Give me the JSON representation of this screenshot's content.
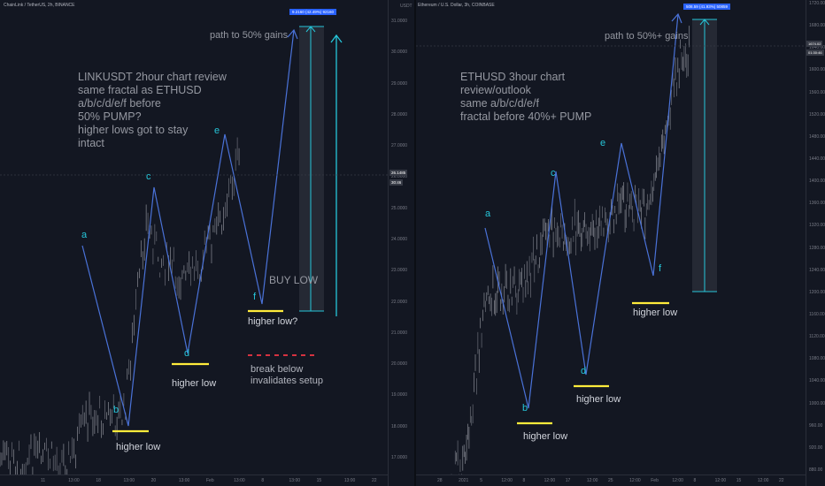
{
  "left_chart": {
    "ticker": "ChainLink / TetherUS, 2h, BINANCE",
    "title_note": "LINKUSDT 2hour chart review\nsame fractal as ETHUSD\na/b/c/d/e/f before\n50% PUMP?\nhigher lows got to stay\nintact",
    "path_note": "path to 50% gains",
    "buy_low": "BUY LOW",
    "break_note": "break below\ninvalidates setup",
    "price_box": "9.2160 (42.49%) 92160",
    "price_tag_top": "26.1485",
    "price_tag_bottom": "30:46",
    "waves": [
      "a",
      "b",
      "c",
      "d",
      "e",
      "f"
    ],
    "higher_low_labels": [
      "higher low",
      "higher low",
      "higher low?"
    ],
    "y_ticks": [
      "31.0000",
      "30.0000",
      "29.0000",
      "28.0000",
      "27.0000",
      "26.0000",
      "25.0000",
      "24.0000",
      "23.0000",
      "22.0000",
      "21.0000",
      "20.0000",
      "19.0000",
      "18.0000",
      "17.0000"
    ],
    "x_ticks": [
      "11",
      "13:00",
      "18",
      "13:00",
      "20",
      "13:00",
      "Feb",
      "13:00",
      "8",
      "13:00",
      "15",
      "13:00",
      "22"
    ],
    "colors": {
      "wave_line": "#4a72d8",
      "accent": "#26c6da",
      "highlight": "#ffeb3b",
      "danger": "#f23645"
    }
  },
  "right_chart": {
    "ticker": "Ethereum / U.S. Dollar, 3h, COINBASE",
    "currency": "USDT",
    "title_note": "ETHUSD 3hour chart\nreview/outlook\nsame a/b/c/d/e/f\nfractal before 40%+ PUMP",
    "path_note": "path to 50%+ gains",
    "price_box": "508.59 (41.93%) 50859",
    "price_tag_top": "1674.02",
    "price_tag_bottom": "01:30:46",
    "waves": [
      "a",
      "b",
      "c",
      "d",
      "e",
      "f"
    ],
    "higher_low_labels": [
      "higher low",
      "higher low",
      "higher low"
    ],
    "y_ticks": [
      "1720.00",
      "1680.00",
      "1640.00",
      "1600.00",
      "1560.00",
      "1520.00",
      "1480.00",
      "1440.00",
      "1400.00",
      "1360.00",
      "1320.00",
      "1280.00",
      "1240.00",
      "1200.00",
      "1160.00",
      "1120.00",
      "1080.00",
      "1040.00",
      "1000.00",
      "960.00",
      "920.00",
      "880.00"
    ],
    "x_ticks": [
      "28",
      "2021",
      "5",
      "12:00",
      "8",
      "12:00",
      "17",
      "12:00",
      "25",
      "12:00",
      "Feb",
      "12:00",
      "8",
      "12:00",
      "15",
      "12:00",
      "22"
    ]
  }
}
